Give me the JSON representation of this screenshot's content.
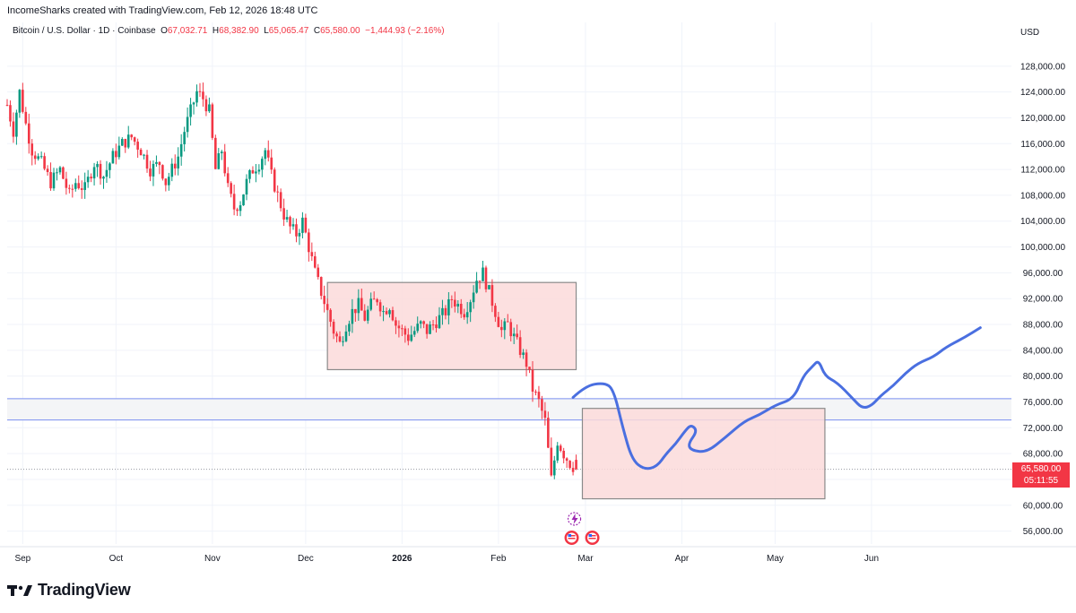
{
  "header": {
    "attribution": "IncomeSharks created with TradingView.com, Feb 12, 2026 18:48 UTC"
  },
  "symbol": {
    "name": "Bitcoin / U.S. Dollar · 1D · Coinbase",
    "o_label": "O",
    "o_value": "67,032.71",
    "h_label": "H",
    "h_value": "68,382.90",
    "l_label": "L",
    "l_value": "65,065.47",
    "c_label": "C",
    "c_value": "65,580.00",
    "change": "−1,444.93 (−2.16%)"
  },
  "currency": "USD",
  "last_price": {
    "price": "65,580.00",
    "countdown": "05:11:55"
  },
  "colors": {
    "up": "#089981",
    "down": "#f23645",
    "zone_fill": "#fbdadb",
    "zone_stroke": "#8a8a8a",
    "band_line": "#7b8ff0",
    "projection": "#4a6fe0",
    "grid": "#f0f3fa"
  },
  "logo": {
    "text": "TradingView"
  },
  "chart_data": {
    "type": "candlestick",
    "title": "Bitcoin / U.S. Dollar · 1D · Coinbase",
    "y_axis": {
      "unit": "USD",
      "ylim": [
        54000,
        132000
      ],
      "ticks": [
        "56,000.00",
        "60,000.00",
        "64,000.00",
        "68,000.00",
        "72,000.00",
        "76,000.00",
        "80,000.00",
        "84,000.00",
        "88,000.00",
        "92,000.00",
        "96,000.00",
        "100,000.00",
        "104,000.00",
        "108,000.00",
        "112,000.00",
        "116,000.00",
        "120,000.00",
        "124,000.00",
        "128,000.00"
      ]
    },
    "x_axis": {
      "range_days": [
        -5,
        318
      ],
      "tick_labels": [
        {
          "label": "Sep",
          "day": 0
        },
        {
          "label": "Oct",
          "day": 30
        },
        {
          "label": "Nov",
          "day": 61
        },
        {
          "label": "Dec",
          "day": 91
        },
        {
          "label": "2026",
          "day": 122,
          "bold": true
        },
        {
          "label": "Feb",
          "day": 153
        },
        {
          "label": "Mar",
          "day": 181
        },
        {
          "label": "Apr",
          "day": 212
        },
        {
          "label": "May",
          "day": 242
        },
        {
          "label": "Jun",
          "day": 273
        }
      ]
    },
    "price_path": [
      [
        -5,
        122000
      ],
      [
        -3,
        118000
      ],
      [
        -1,
        124000
      ],
      [
        1,
        119000
      ],
      [
        3,
        115000
      ],
      [
        6,
        113000
      ],
      [
        9,
        110000
      ],
      [
        12,
        112000
      ],
      [
        15,
        108000
      ],
      [
        17,
        110000
      ],
      [
        20,
        109000
      ],
      [
        23,
        113000
      ],
      [
        26,
        111000
      ],
      [
        29,
        114000
      ],
      [
        32,
        116000
      ],
      [
        35,
        117000
      ],
      [
        38,
        115000
      ],
      [
        41,
        112000
      ],
      [
        44,
        113000
      ],
      [
        46,
        110000
      ],
      [
        48,
        112000
      ],
      [
        50,
        114000
      ],
      [
        52,
        118000
      ],
      [
        54,
        121000
      ],
      [
        56,
        124000
      ],
      [
        58,
        123000
      ],
      [
        60,
        121000
      ],
      [
        62,
        112000
      ],
      [
        64,
        115000
      ],
      [
        66,
        109000
      ],
      [
        68,
        106000
      ],
      [
        70,
        107000
      ],
      [
        72,
        110000
      ],
      [
        74,
        112000
      ],
      [
        76,
        113000
      ],
      [
        78,
        115000
      ],
      [
        80,
        111000
      ],
      [
        82,
        108000
      ],
      [
        84,
        105000
      ],
      [
        86,
        103000
      ],
      [
        88,
        102000
      ],
      [
        90,
        104000
      ],
      [
        92,
        100000
      ],
      [
        94,
        96000
      ],
      [
        96,
        93000
      ],
      [
        98,
        90000
      ],
      [
        100,
        87000
      ],
      [
        102,
        85000
      ],
      [
        104,
        88000
      ],
      [
        106,
        90000
      ],
      [
        108,
        91000
      ],
      [
        110,
        89000
      ],
      [
        112,
        91000
      ],
      [
        114,
        92000
      ],
      [
        116,
        90000
      ],
      [
        118,
        91000
      ],
      [
        120,
        88000
      ],
      [
        122,
        87000
      ],
      [
        124,
        86000
      ],
      [
        126,
        87000
      ],
      [
        128,
        88000
      ],
      [
        130,
        87000
      ],
      [
        132,
        88000
      ],
      [
        134,
        89000
      ],
      [
        136,
        90000
      ],
      [
        138,
        92000
      ],
      [
        140,
        91000
      ],
      [
        142,
        90000
      ],
      [
        144,
        92000
      ],
      [
        146,
        95000
      ],
      [
        148,
        96000
      ],
      [
        150,
        93000
      ],
      [
        152,
        90000
      ],
      [
        154,
        87000
      ],
      [
        156,
        88000
      ],
      [
        158,
        86000
      ],
      [
        160,
        84000
      ],
      [
        162,
        82000
      ],
      [
        164,
        78000
      ],
      [
        166,
        76000
      ],
      [
        168,
        73000
      ],
      [
        170,
        64000
      ],
      [
        172,
        70000
      ],
      [
        174,
        68000
      ],
      [
        176,
        66500
      ],
      [
        178,
        65580
      ]
    ],
    "zones": [
      {
        "name": "prior range",
        "day_start": 98,
        "day_end": 178,
        "price_high": 94500,
        "price_low": 81000
      },
      {
        "name": "target range",
        "day_start": 180,
        "day_end": 258,
        "price_high": 75000,
        "price_low": 61000
      }
    ],
    "horizontal_lines": [
      76500,
      73200
    ],
    "last_price": 65580,
    "projection_path": [
      [
        177,
        76700
      ],
      [
        181,
        78500
      ],
      [
        187,
        79000
      ],
      [
        190,
        78000
      ],
      [
        193,
        72000
      ],
      [
        196,
        67000
      ],
      [
        200,
        65500
      ],
      [
        204,
        66000
      ],
      [
        207,
        68000
      ],
      [
        210,
        69500
      ],
      [
        213,
        71500
      ],
      [
        215,
        72500
      ],
      [
        217,
        71500
      ],
      [
        214,
        69500
      ],
      [
        215,
        68500
      ],
      [
        220,
        68200
      ],
      [
        226,
        70500
      ],
      [
        232,
        73000
      ],
      [
        237,
        74000
      ],
      [
        242,
        75500
      ],
      [
        248,
        76500
      ],
      [
        251,
        80000
      ],
      [
        254,
        81500
      ],
      [
        256,
        82500
      ],
      [
        258,
        80000
      ],
      [
        262,
        79000
      ],
      [
        267,
        76500
      ],
      [
        270,
        75000
      ],
      [
        273,
        75400
      ],
      [
        276,
        77000
      ],
      [
        280,
        78500
      ],
      [
        284,
        80500
      ],
      [
        288,
        82000
      ],
      [
        293,
        83000
      ],
      [
        297,
        84500
      ],
      [
        303,
        86000
      ],
      [
        308,
        87500
      ]
    ],
    "event_icons": [
      "lightning-icon",
      "flag-icon",
      "flag-icon"
    ]
  }
}
